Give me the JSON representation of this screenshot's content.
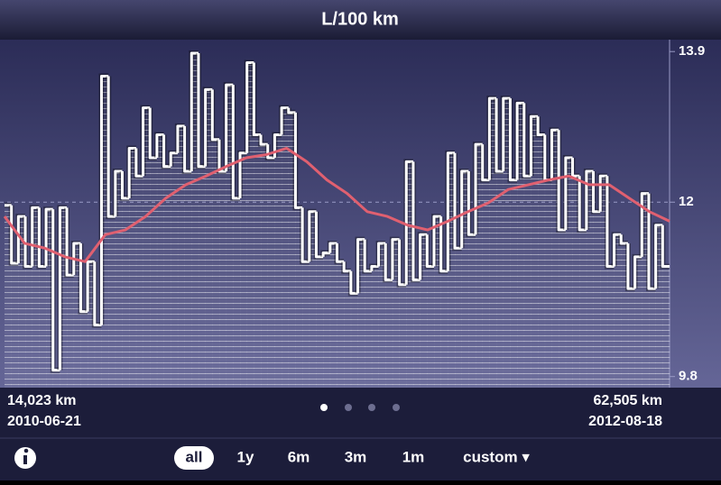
{
  "chart_data": {
    "type": "step",
    "title": "L/100 km",
    "series": [
      {
        "color": "#ffffff",
        "values": [
          11.96,
          11.23,
          11.82,
          11.19,
          11.93,
          11.19,
          11.91,
          9.88,
          11.93,
          11.08,
          11.48,
          10.62,
          11.25,
          10.45,
          13.59,
          11.82,
          12.39,
          12.05,
          12.68,
          12.33,
          13.19,
          12.56,
          12.85,
          12.45,
          12.62,
          12.96,
          12.39,
          13.88,
          12.45,
          13.42,
          12.79,
          12.39,
          13.48,
          12.05,
          12.62,
          13.76,
          12.85,
          12.73,
          12.56,
          12.85,
          13.19,
          13.13,
          11.93,
          11.25,
          11.88,
          11.31,
          11.36,
          11.48,
          11.25,
          11.13,
          10.85,
          11.53,
          11.13,
          11.19,
          11.48,
          11.02,
          11.53,
          10.96,
          12.51,
          11.02,
          11.59,
          11.19,
          11.82,
          11.13,
          12.62,
          11.42,
          12.39,
          11.59,
          12.73,
          12.28,
          13.31,
          12.39,
          13.31,
          12.28,
          13.25,
          12.33,
          13.08,
          12.85,
          12.28,
          12.91,
          11.65,
          12.56,
          12.33,
          11.65,
          12.39,
          11.88,
          12.33,
          11.19,
          11.59,
          11.48,
          10.91,
          11.31,
          12.11,
          10.91,
          11.71,
          11.19
        ]
      },
      {
        "color": "#e06070",
        "values": [
          11.82,
          11.48,
          11.42,
          11.31,
          11.25,
          11.59,
          11.65,
          11.82,
          12.05,
          12.22,
          12.33,
          12.45,
          12.56,
          12.6,
          12.68,
          12.51,
          12.28,
          12.11,
          11.88,
          11.82,
          11.71,
          11.65,
          11.76,
          11.88,
          11.99,
          12.16,
          12.22,
          12.28,
          12.33,
          12.22,
          12.22,
          12.05,
          11.88,
          11.76
        ]
      }
    ],
    "ylim": [
      9.66,
      14.05
    ],
    "yticks": [
      13.9,
      12.0,
      9.8
    ],
    "range": {
      "start_distance": "14,023 km",
      "start_date": "2010-06-21",
      "end_distance": "62,505 km",
      "end_date": "2012-08-18"
    },
    "periods": [
      "all",
      "1y",
      "6m",
      "3m",
      "1m",
      "custom ▾"
    ],
    "selected_period": 0
  }
}
